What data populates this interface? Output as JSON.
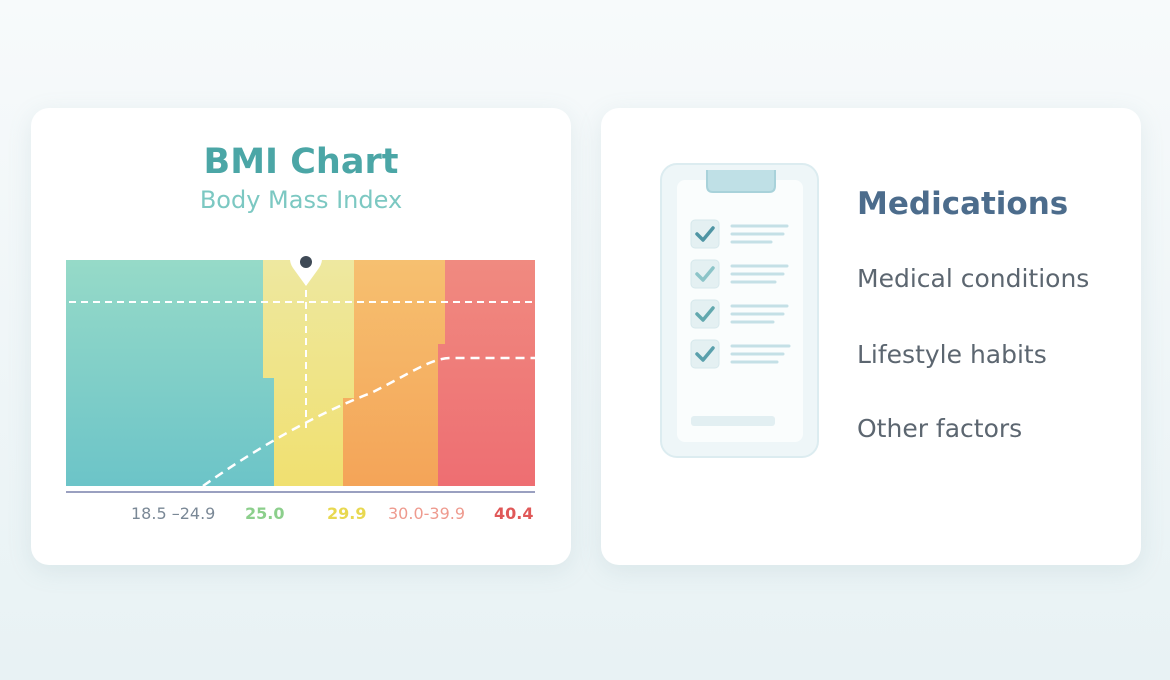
{
  "bmi_card": {
    "title": "BMI Chart",
    "subtitle": "Body Mass Index",
    "labels": [
      {
        "text": "18.5 –24.9",
        "color": "#7a8896"
      },
      {
        "text": "25.0",
        "color": "#8ccf8c"
      },
      {
        "text": "29.9",
        "color": "#e8d850"
      },
      {
        "text": "30.0-39.9",
        "color": "#ee9a8e"
      },
      {
        "text": "40.4",
        "color": "#e05858"
      }
    ],
    "band_colors": [
      "#7ccfc4",
      "#f0e47c",
      "#f6b064",
      "#f07878"
    ]
  },
  "factors_card": {
    "items": [
      "Medications",
      "Medical conditions",
      "Lifestyle habits",
      "Other factors"
    ],
    "checklist_checked": [
      true,
      true,
      true,
      true
    ]
  }
}
